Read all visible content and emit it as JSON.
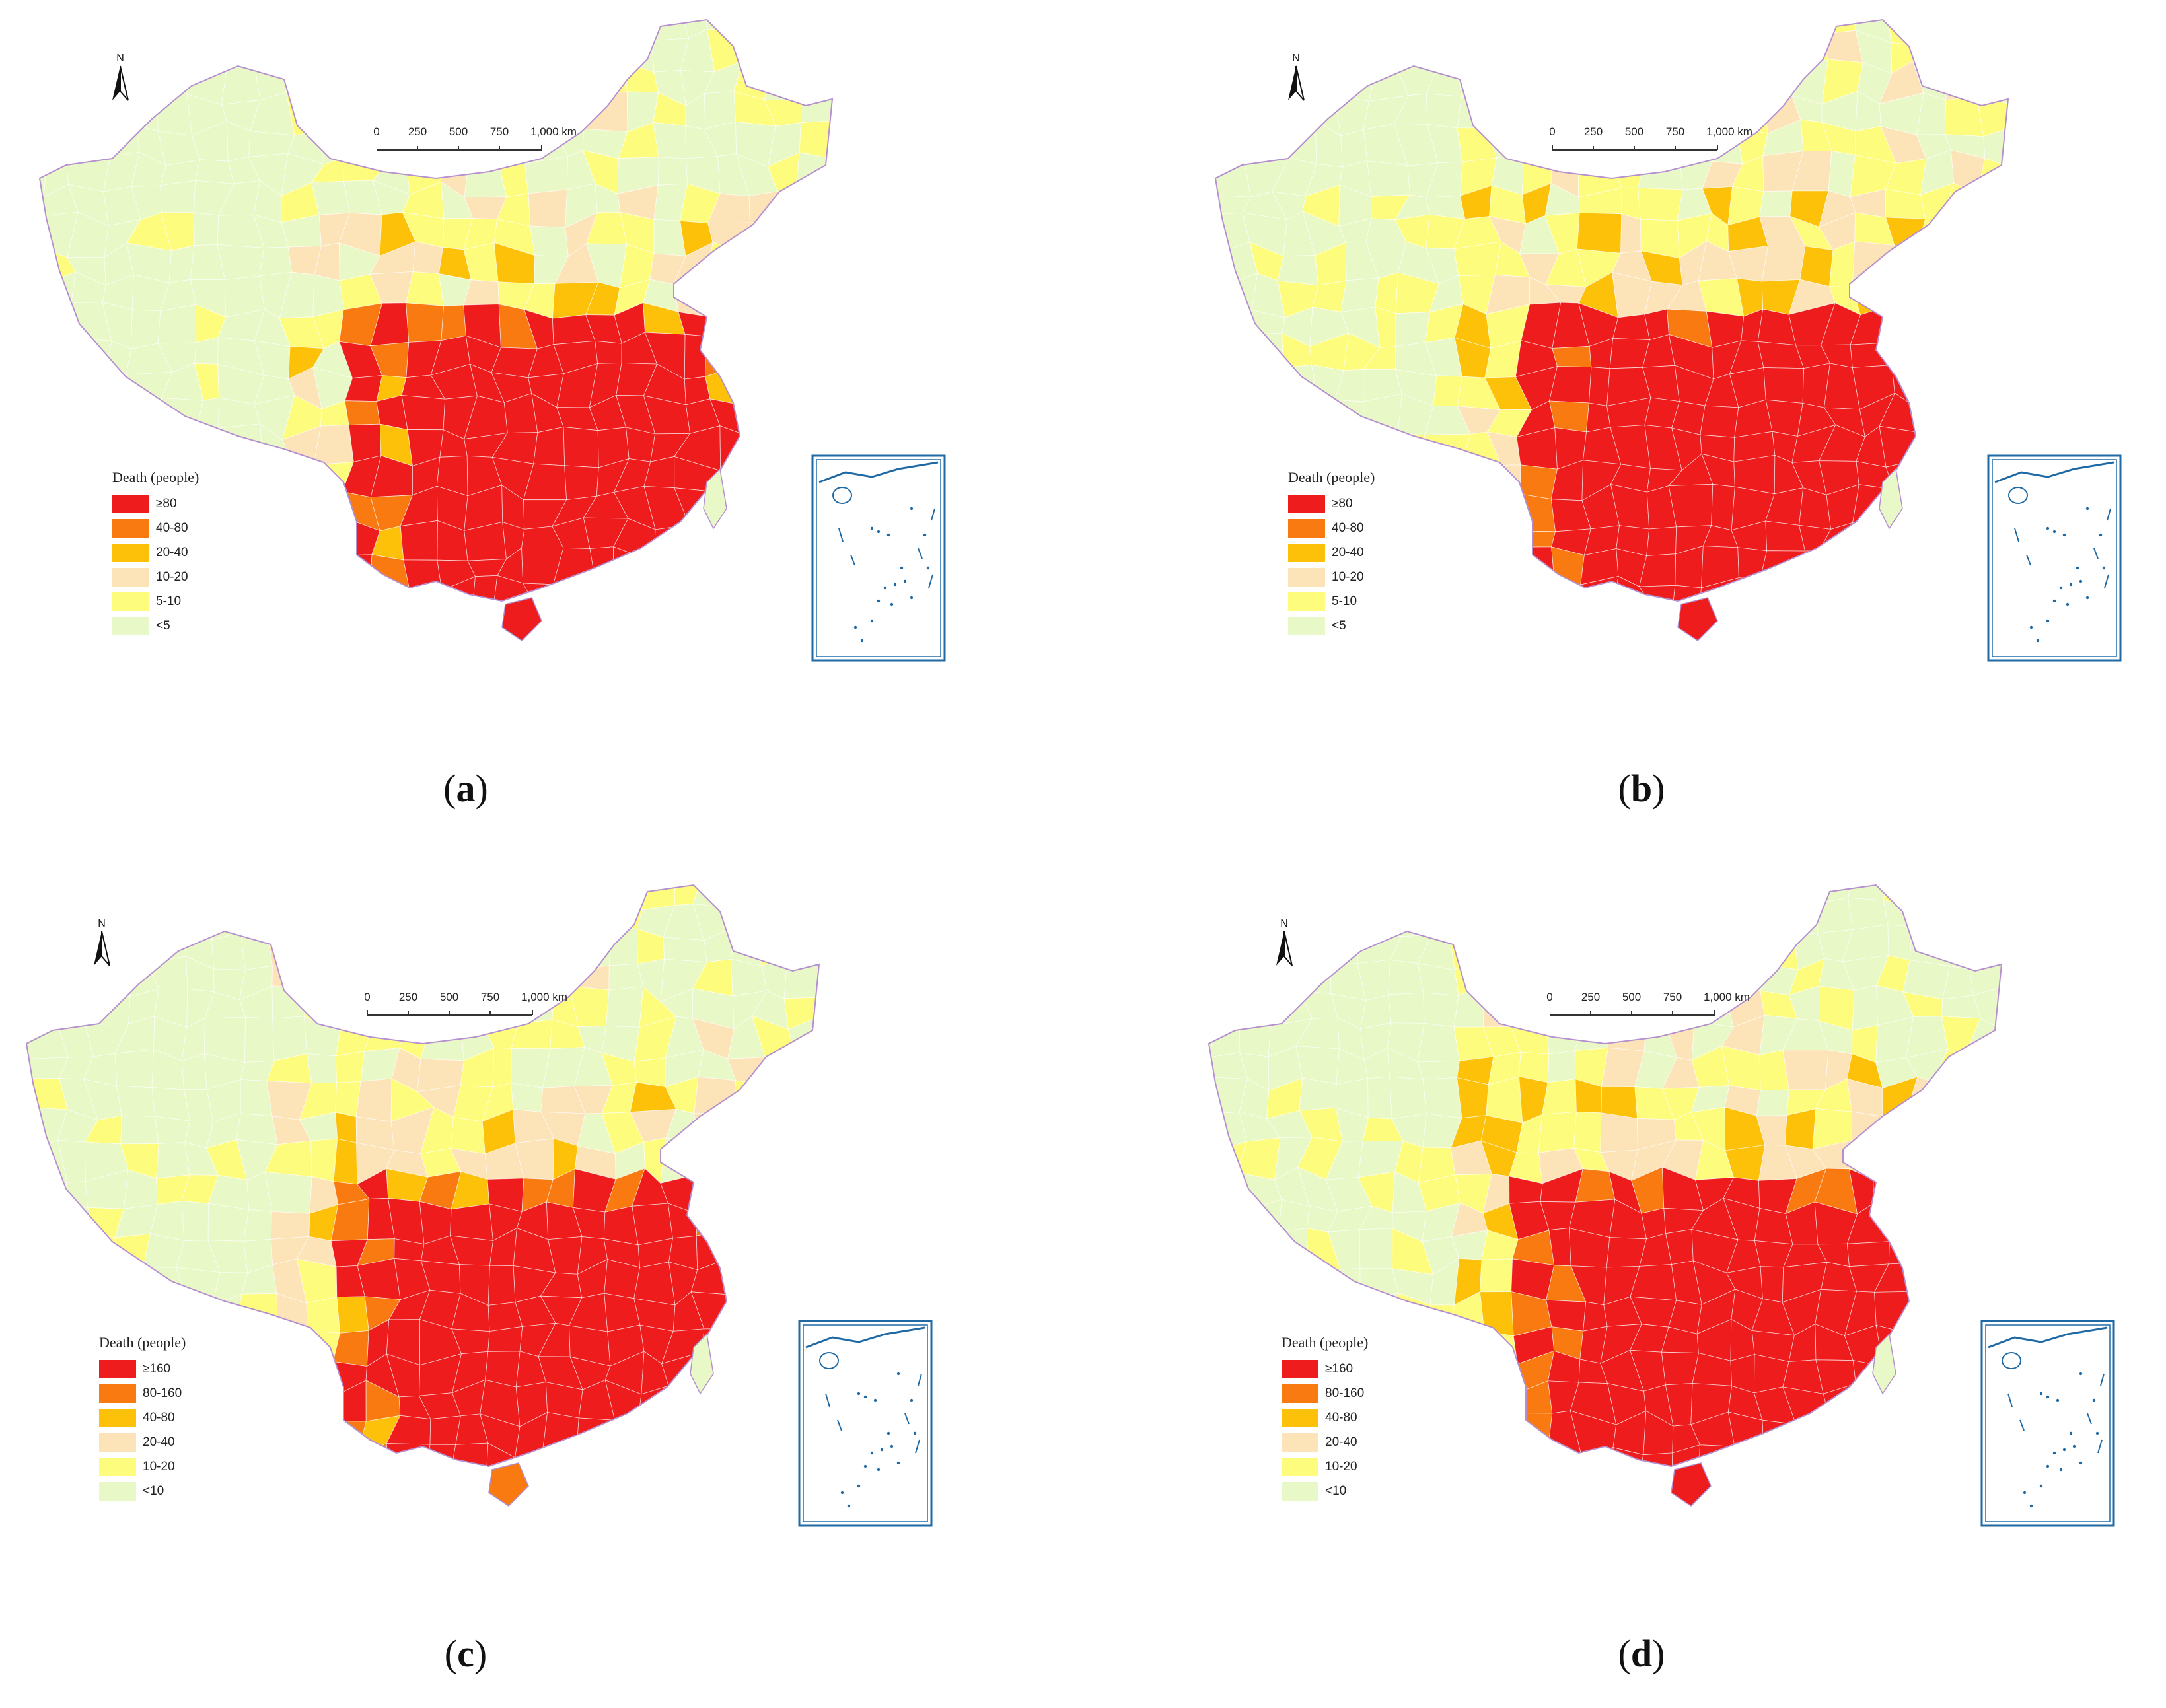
{
  "colors": {
    "class1": "#ee1c1c",
    "class2": "#f97a10",
    "class3": "#fdc10a",
    "class4": "#fde3b8",
    "class5": "#fefc7c",
    "class6": "#e8f8c6",
    "border": "#b58fcf",
    "inset_border": "#1f6aa5"
  },
  "north_label": "N",
  "panels": [
    {
      "caption_letter": "a",
      "legend": {
        "title": "Death (people)",
        "classes": [
          "≥80",
          "40-80",
          "20-40",
          "10-20",
          "5-10",
          "<5"
        ]
      },
      "scale": {
        "ticks": [
          "0",
          "250",
          "500",
          "750",
          "1,000 km"
        ]
      }
    },
    {
      "caption_letter": "b",
      "legend": {
        "title": "Death (people)",
        "classes": [
          "≥80",
          "40-80",
          "20-40",
          "10-20",
          "5-10",
          "<5"
        ]
      },
      "scale": {
        "ticks": [
          "0",
          "250",
          "500",
          "750",
          "1,000 km"
        ]
      }
    },
    {
      "caption_letter": "c",
      "legend": {
        "title": "Death (people)",
        "classes": [
          "≥160",
          "80-160",
          "40-80",
          "20-40",
          "10-20",
          "<10"
        ]
      },
      "scale": {
        "ticks": [
          "0",
          "250",
          "500",
          "750",
          "1,000 km"
        ]
      }
    },
    {
      "caption_letter": "d",
      "legend": {
        "title": "Death (people)",
        "classes": [
          "≥160",
          "80-160",
          "40-80",
          "20-40",
          "10-20",
          "<10"
        ]
      },
      "scale": {
        "ticks": [
          "0",
          "250",
          "500",
          "750",
          "1,000 km"
        ]
      }
    }
  ]
}
